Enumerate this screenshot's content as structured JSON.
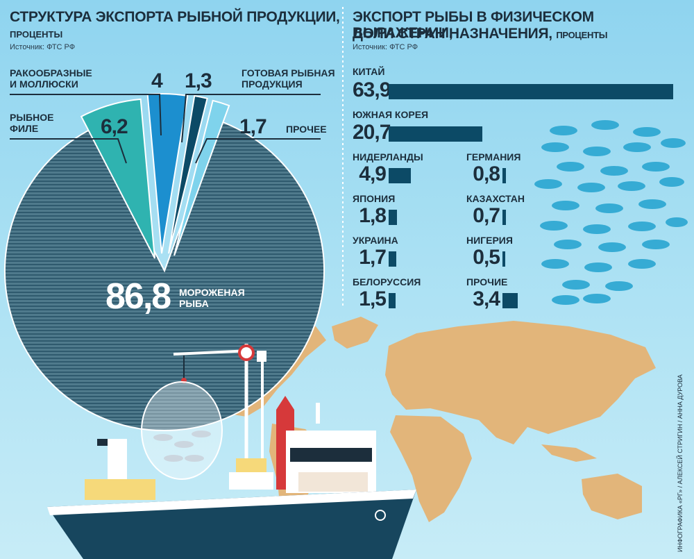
{
  "left_panel": {
    "title": "СТРУКТУРА ЭКСПОРТА РЫБНОЙ ПРОДУКЦИИ,",
    "unit": "ПРОЦЕНТЫ",
    "source": "Источник: ФТС РФ"
  },
  "right_panel": {
    "title_line1": "ЭКСПОРТ РЫБЫ В ФИЗИЧЕСКОМ ВЫРАЖЕНИИ,",
    "title_line2": "ДОЛИ СТРАН НАЗНАЧЕНИЯ,",
    "unit": "ПРОЦЕНТЫ",
    "source": "Источник: ФТС РФ"
  },
  "credit": "ИНФОГРАФИКА «РГ» / АЛЕКСЕЙ СТРИГИН / АННА ДУРОВА",
  "colors": {
    "frozen_fish": "#3a6578",
    "fish_fillet": "#2fb3b0",
    "crustaceans": "#1c8fcf",
    "ready_products": "#0c4a66",
    "other": "#7fd3ec",
    "bar": "#0c4a66",
    "land": "#e2b57a"
  },
  "chart_data": [
    {
      "type": "pie",
      "slices": [
        {
          "label_line1": "МОРОЖЕНАЯ",
          "label_line2": "РЫБА",
          "value": 86.8,
          "value_text": "86,8"
        },
        {
          "label_line1": "РЫБНОЕ",
          "label_line2": "ФИЛЕ",
          "value": 6.2,
          "value_text": "6,2"
        },
        {
          "label_line1": "РАКООБРАЗНЫЕ",
          "label_line2": "И МОЛЛЮСКИ",
          "value": 4.0,
          "value_text": "4"
        },
        {
          "label_line1": "ГОТОВАЯ РЫБНАЯ",
          "label_line2": "ПРОДУКЦИЯ",
          "value": 1.3,
          "value_text": "1,3"
        },
        {
          "label_line1": "ПРОЧЕЕ",
          "label_line2": "",
          "value": 1.7,
          "value_text": "1,7"
        }
      ]
    },
    {
      "type": "bar",
      "categories": [
        "КИТАЙ",
        "ЮЖНАЯ КОРЕЯ",
        "НИДЕРЛАНДЫ",
        "ЯПОНИЯ",
        "УКРАИНА",
        "БЕЛОРУССИЯ",
        "ГЕРМАНИЯ",
        "КАЗАХСТАН",
        "НИГЕРИЯ",
        "ПРОЧИЕ"
      ],
      "values": [
        63.9,
        20.7,
        4.9,
        1.8,
        1.7,
        1.5,
        0.8,
        0.7,
        0.5,
        3.4
      ],
      "value_texts": [
        "63,9",
        "20,7",
        "4,9",
        "1,8",
        "1,7",
        "1,5",
        "0,8",
        "0,7",
        "0,5",
        "3,4"
      ]
    }
  ]
}
